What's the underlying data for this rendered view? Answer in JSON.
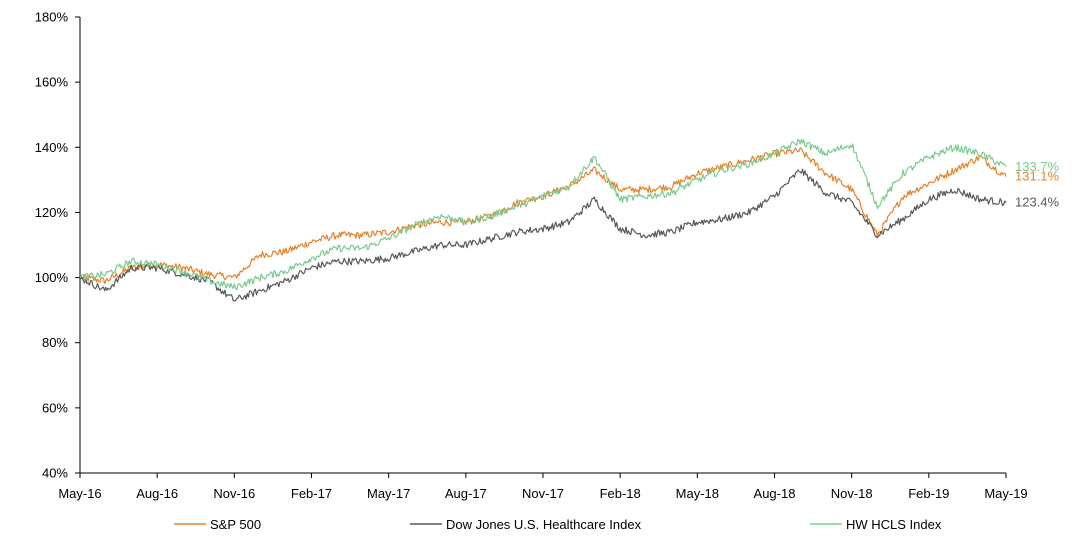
{
  "chart_data": {
    "type": "line",
    "title": "",
    "xlabel": "",
    "ylabel": "",
    "ylim": [
      40,
      180
    ],
    "y_tick_labels": [
      "40%",
      "60%",
      "80%",
      "100%",
      "120%",
      "140%",
      "160%",
      "180%"
    ],
    "y_ticks": [
      40,
      60,
      80,
      100,
      120,
      140,
      160,
      180
    ],
    "x_tick_labels": [
      "May-16",
      "Aug-16",
      "Nov-16",
      "Feb-17",
      "May-17",
      "Aug-17",
      "Nov-17",
      "Feb-18",
      "May-18",
      "Aug-18",
      "Nov-18",
      "Feb-19",
      "May-19"
    ],
    "x": [
      "May-16",
      "Jun-16",
      "Jul-16",
      "Aug-16",
      "Sep-16",
      "Oct-16",
      "Nov-16",
      "Dec-16",
      "Jan-17",
      "Feb-17",
      "Mar-17",
      "Apr-17",
      "May-17",
      "Jun-17",
      "Jul-17",
      "Aug-17",
      "Sep-17",
      "Oct-17",
      "Nov-17",
      "Dec-17",
      "Jan-18",
      "Feb-18",
      "Mar-18",
      "Apr-18",
      "May-18",
      "Jun-18",
      "Jul-18",
      "Aug-18",
      "Sep-18",
      "Oct-18",
      "Nov-18",
      "Dec-18",
      "Jan-19",
      "Feb-19",
      "Mar-19",
      "Apr-19",
      "May-19"
    ],
    "grid": false,
    "legend_position": "bottom",
    "series": [
      {
        "name": "S&P 500",
        "color": "#E8822A",
        "end_label": "131.1%",
        "values": [
          100,
          99,
          103,
          104,
          103,
          101,
          100,
          107,
          108,
          111,
          113,
          113,
          114,
          116,
          117,
          117,
          119,
          123,
          125,
          128,
          133,
          127,
          127,
          128,
          132,
          134,
          136,
          138,
          139,
          132,
          127,
          113,
          125,
          129,
          133,
          137,
          131
        ]
      },
      {
        "name": "Dow Jones U.S. Healthcare Index",
        "color": "#595959",
        "end_label": "123.4%",
        "values": [
          100,
          96,
          103,
          103,
          101,
          99,
          93,
          96,
          99,
          103,
          105,
          105,
          106,
          108,
          110,
          110,
          112,
          114,
          115,
          117,
          124,
          115,
          113,
          114,
          117,
          118,
          120,
          125,
          133,
          126,
          123,
          113,
          118,
          124,
          127,
          124,
          123
        ]
      },
      {
        "name": "HW HCLS Index",
        "color": "#7CCB8E",
        "end_label": "133.7%",
        "values": [
          100,
          101,
          105,
          104,
          102,
          99,
          97,
          100,
          102,
          106,
          109,
          109,
          112,
          116,
          119,
          117,
          119,
          122,
          125,
          128,
          137,
          124,
          125,
          126,
          130,
          133,
          135,
          138,
          142,
          138,
          141,
          122,
          132,
          137,
          140,
          138,
          134
        ]
      }
    ]
  }
}
